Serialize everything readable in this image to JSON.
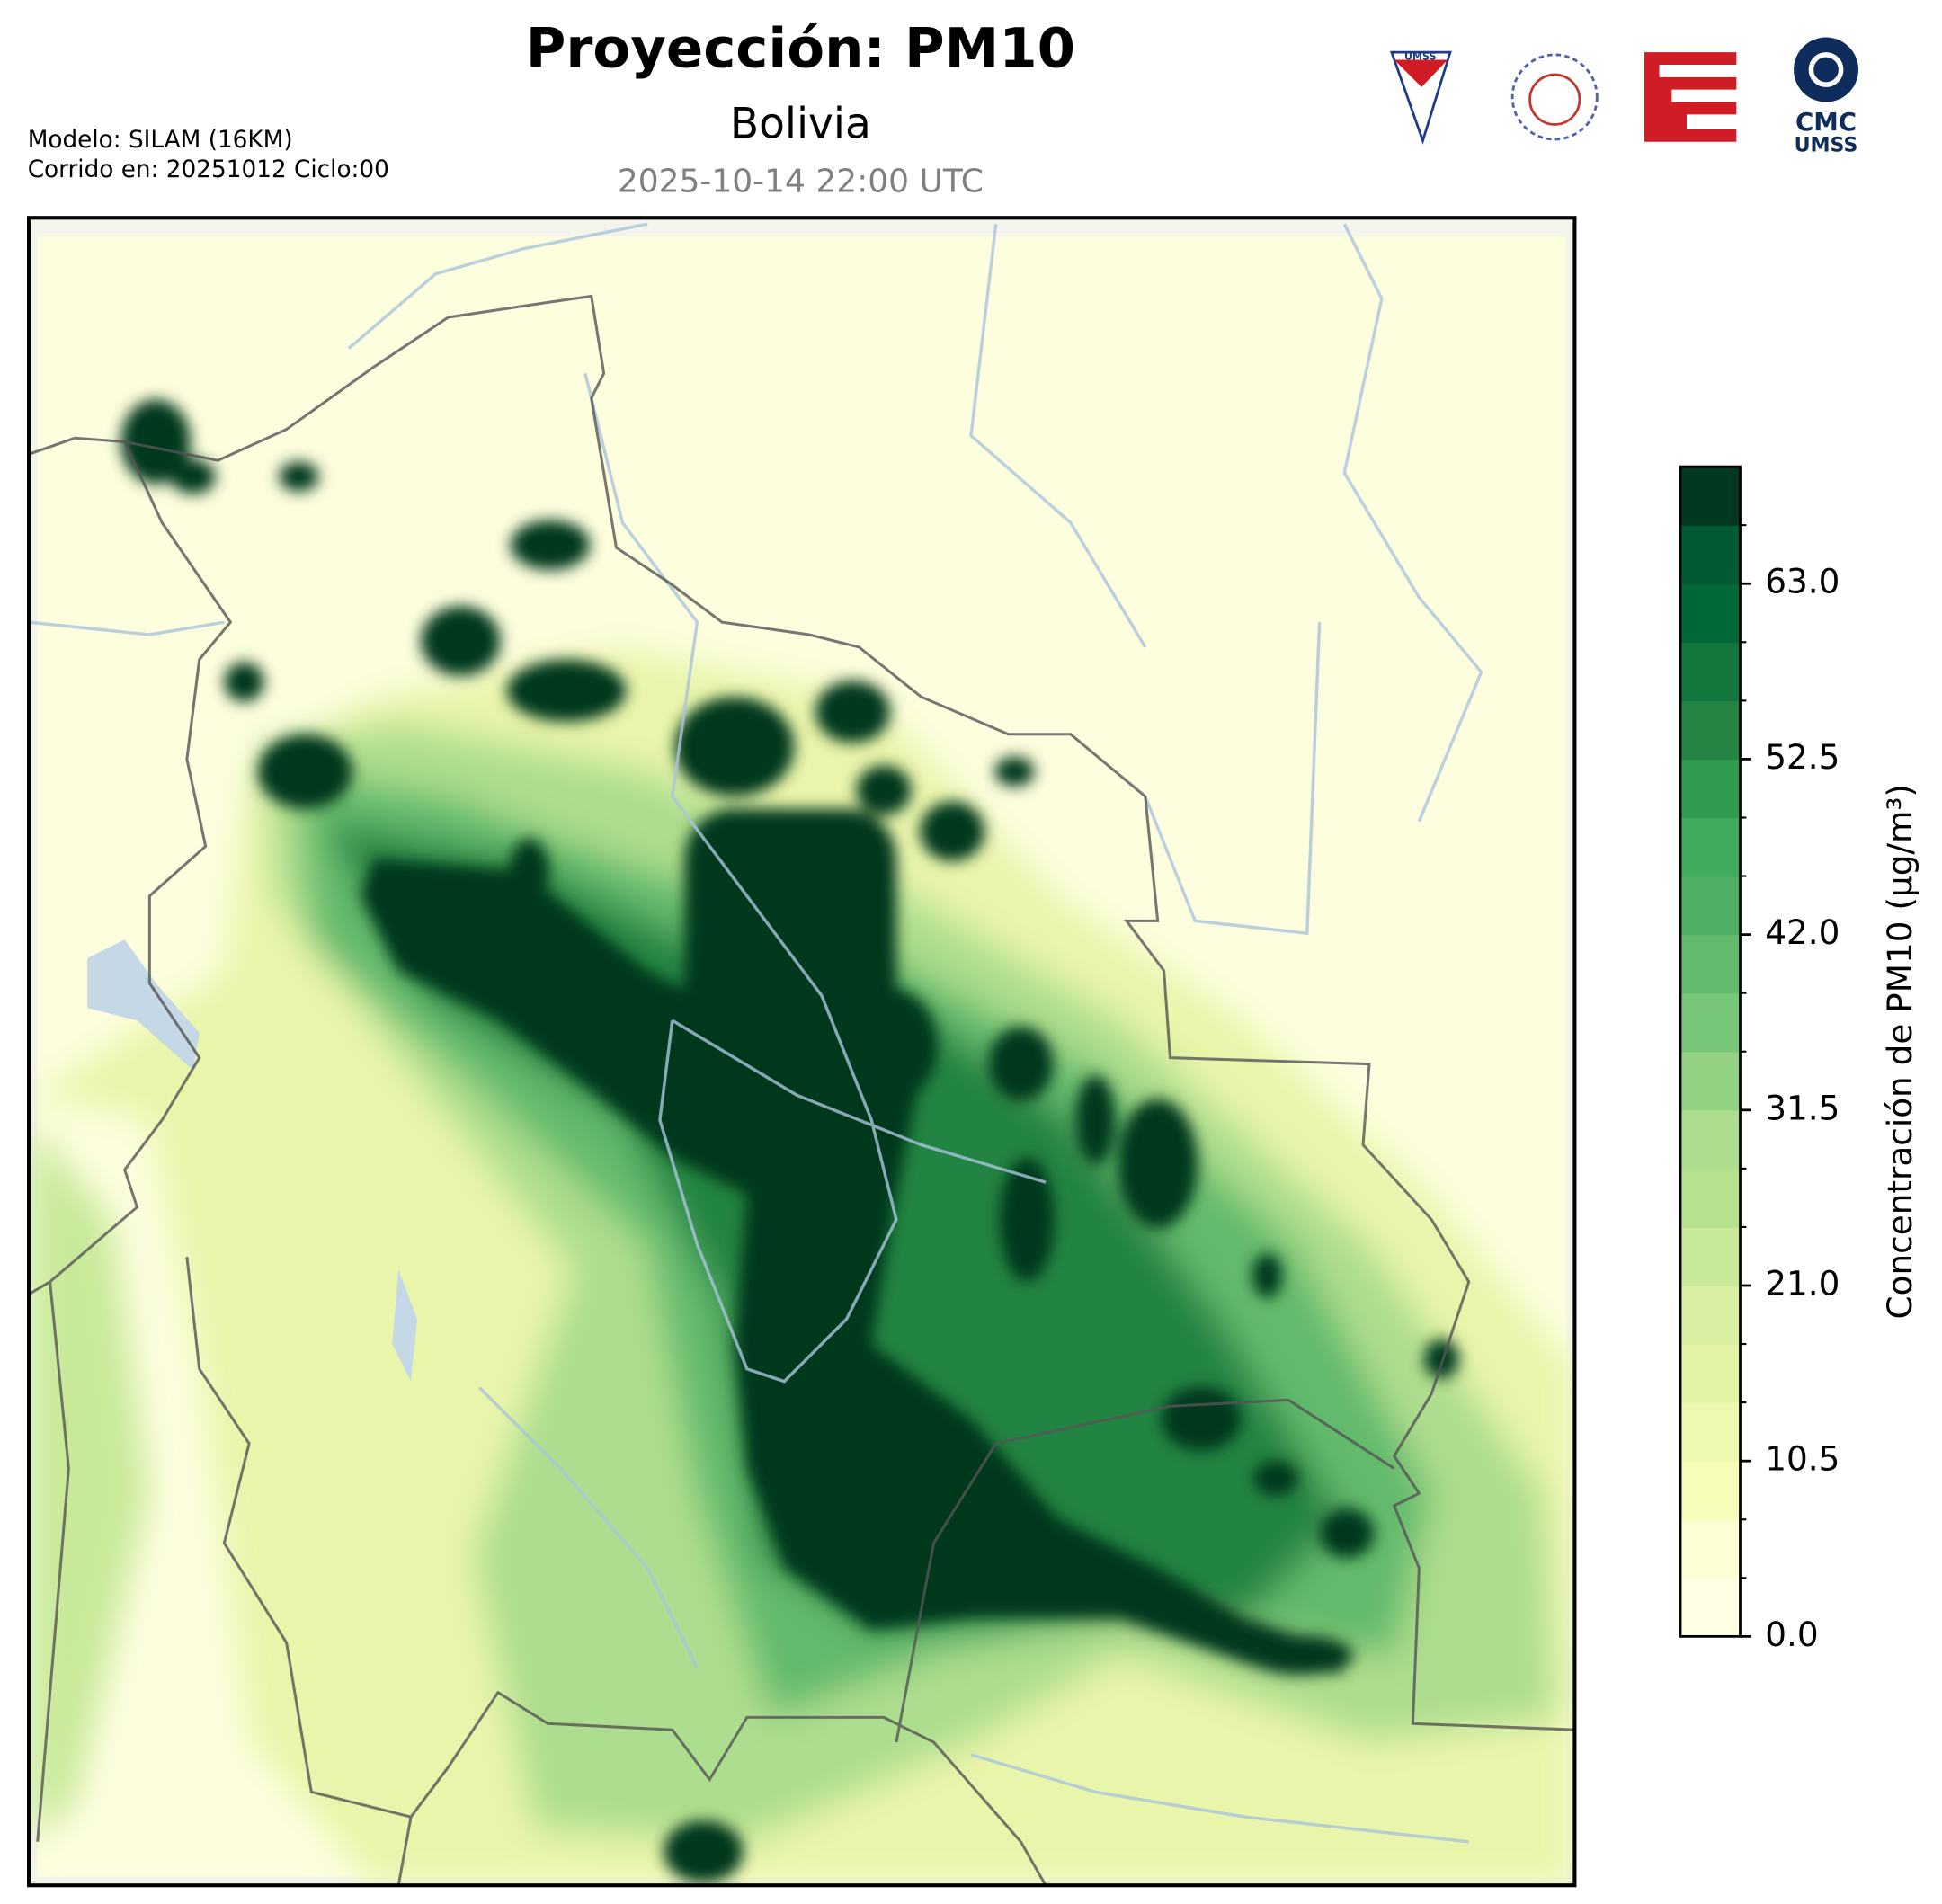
{
  "chart_data": {
    "type": "map",
    "title": "Proyección: PM10",
    "subtitle": "Bolivia",
    "timestamp": "2025-10-14 22:00 UTC",
    "model_info": [
      "Modelo: SILAM (16KM)",
      "Corrido en: 20251012 Ciclo:00"
    ],
    "logo_text": {
      "shield": "UMSS",
      "cmc": "CMC",
      "umss": "UMSS"
    },
    "colorbar": {
      "label": "Concentración de PM10 (μg/m³)",
      "clim": [
        0,
        70
      ],
      "ticks": [
        {
          "value": 0,
          "label": "0.0"
        },
        10.5,
        {
          "value": 21,
          "label": "21.0"
        },
        31.5,
        {
          "value": 42,
          "label": "42.0"
        },
        52.5,
        {
          "value": 63,
          "label": "63.0"
        }
      ],
      "colors": [
        "#ffffe5",
        "#fcfed3",
        "#f7fcb9",
        "#eef8b0",
        "#e4f4a7",
        "#d9f0a3",
        "#c8e99a",
        "#b6e290",
        "#addd8e",
        "#93d283",
        "#78c679",
        "#62ba6c",
        "#4daf62",
        "#41ab5d",
        "#319b50",
        "#238443",
        "#13773d",
        "#006837",
        "#005a32",
        "#00391f"
      ]
    }
  }
}
